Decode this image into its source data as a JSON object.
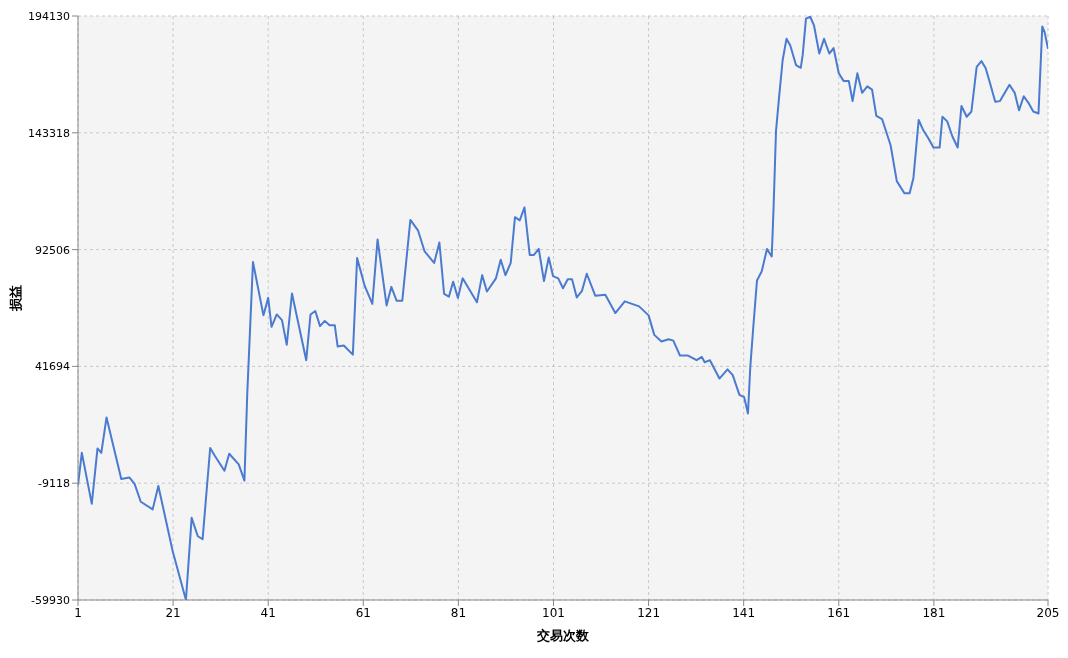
{
  "chart_data": {
    "type": "line",
    "xlabel": "交易次数",
    "ylabel": "损益",
    "x": [
      1,
      1.8,
      3.9,
      5.1,
      5.9,
      7,
      10.1,
      11.8,
      12.9,
      14.2,
      16.7,
      17.9,
      20.9,
      23.7,
      24.9,
      26.2,
      27.2,
      28.8,
      29.8,
      31.8,
      32.8,
      34.8,
      36,
      36.6,
      37.8,
      40,
      41,
      41.7,
      42.8,
      43.9,
      44.9,
      46,
      49,
      49.9,
      50.9,
      51.9,
      52.9,
      53.9,
      55,
      55.6,
      56.9,
      58.8,
      59.7,
      61.3,
      62.9,
      64,
      65.9,
      66.9,
      68,
      69.2,
      70.9,
      72.5,
      73.9,
      75.9,
      77,
      78,
      79,
      79.9,
      80.9,
      81.9,
      84.9,
      86,
      87,
      88.9,
      89.9,
      90.9,
      92,
      92.9,
      93.9,
      94.9,
      96,
      96.9,
      97.9,
      99,
      100,
      100.9,
      102,
      103,
      104,
      104.9,
      105.9,
      107,
      108,
      109.8,
      111.9,
      114,
      116,
      119,
      121,
      122.2,
      123.7,
      125.2,
      126.2,
      127.6,
      129.3,
      131.1,
      132.2,
      132.8,
      133.9,
      135.9,
      137.6,
      138.7,
      140.1,
      141.1,
      141.9,
      142.4,
      143.1,
      143.8,
      144.8,
      145.9,
      146.9,
      147.3,
      147.8,
      148.5,
      149.2,
      150,
      150.8,
      152,
      153,
      153.4,
      154.1,
      155,
      155.8,
      156.9,
      157.9,
      159,
      159.9,
      161,
      162,
      163.1,
      163.9,
      164.9,
      165.9,
      167,
      168,
      168.9,
      170.1,
      171.9,
      173.2,
      174.8,
      175.9,
      176.7,
      177.8,
      178.8,
      179.9,
      180.9,
      182.2,
      182.8,
      183.8,
      184.9,
      186,
      186.8,
      187.9,
      188.9,
      190,
      191,
      191.9,
      192.9,
      193.9,
      194.9,
      196.9,
      198,
      198.9,
      199.9,
      201,
      201.9,
      203,
      203.8,
      204.3,
      205
    ],
    "series": [
      {
        "color": "#4a7bd0",
        "values": [
          -10000,
          4100,
          -18100,
          6000,
          4100,
          19500,
          -7300,
          -6600,
          -9400,
          -17200,
          -20500,
          -10300,
          -38600,
          -59900,
          -24200,
          -32200,
          -33500,
          6200,
          2700,
          -3700,
          3700,
          -900,
          -8000,
          30000,
          87100,
          63900,
          71500,
          58900,
          64300,
          61800,
          51100,
          73400,
          44400,
          64300,
          65800,
          59200,
          61500,
          59600,
          59600,
          50400,
          50800,
          46800,
          88800,
          76700,
          68900,
          96900,
          68200,
          76300,
          70300,
          70300,
          105400,
          100900,
          91700,
          86700,
          95600,
          73200,
          72000,
          78500,
          71500,
          80000,
          69600,
          81400,
          74300,
          80000,
          88100,
          81400,
          86700,
          106600,
          105200,
          110900,
          90200,
          90200,
          92800,
          78800,
          89100,
          81000,
          80000,
          75700,
          79600,
          79600,
          71700,
          74600,
          82000,
          72400,
          72900,
          64900,
          70000,
          67800,
          63900,
          55400,
          52500,
          53500,
          52900,
          46400,
          46400,
          44400,
          45800,
          43500,
          44400,
          36400,
          40400,
          37900,
          29300,
          28300,
          21200,
          41800,
          61000,
          79100,
          83100,
          92800,
          89500,
          111600,
          144300,
          160000,
          175000,
          184200,
          181300,
          172800,
          171600,
          177000,
          193000,
          193800,
          189900,
          177800,
          184200,
          177800,
          180200,
          169200,
          165900,
          165900,
          157100,
          169200,
          160700,
          163500,
          162100,
          150700,
          149300,
          137900,
          122300,
          117000,
          117000,
          123700,
          148900,
          144300,
          140700,
          136900,
          136900,
          150300,
          148300,
          141700,
          136900,
          155000,
          150300,
          152600,
          172000,
          174500,
          171400,
          164200,
          156800,
          157100,
          164200,
          160700,
          153100,
          159200,
          156000,
          152600,
          151700,
          189600,
          187000,
          179900
        ]
      }
    ],
    "xlim": [
      1,
      205
    ],
    "xticks": [
      1,
      21,
      41,
      61,
      81,
      101,
      121,
      141,
      161,
      181,
      205
    ],
    "ylim": [
      -59930,
      194130
    ],
    "yticks": [
      -59930,
      -9118,
      41694,
      92506,
      143318,
      194130
    ],
    "grid": true
  }
}
